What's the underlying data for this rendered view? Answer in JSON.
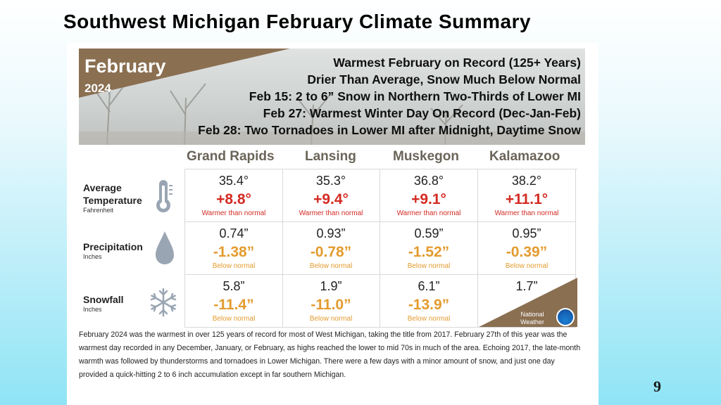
{
  "slide": {
    "title": "Southwest Michigan February Climate Summary",
    "page_number": "9"
  },
  "banner": {
    "month": "February",
    "year": "2024",
    "headlines": [
      "Warmest February on Record (125+ Years)",
      "Drier Than Average, Snow Much Below Normal",
      "Feb 15:  2 to 6” Snow in Northern Two-Thirds of Lower MI",
      "Feb 27:  Warmest Winter Day On Record (Dec-Jan-Feb)",
      "Feb 28:  Two Tornadoes in Lower MI after Midnight, Daytime Snow"
    ]
  },
  "cities": [
    "Grand Rapids",
    "Lansing",
    "Muskegon",
    "Kalamazoo"
  ],
  "rows": [
    {
      "label": "Average",
      "label2": "Temperature",
      "unit": "Fahrenheit",
      "icon": "thermometer-icon",
      "values": [
        "35.4°",
        "35.3°",
        "36.8°",
        "38.2°"
      ],
      "departures": [
        "+8.8°",
        "+9.4°",
        "+9.1°",
        "+11.1°"
      ],
      "notes": [
        "Warmer than normal",
        "Warmer than normal",
        "Warmer than normal",
        "Warmer than normal"
      ]
    },
    {
      "label": "Precipitation",
      "unit": "Inches",
      "icon": "raindrop-icon",
      "values": [
        "0.74”",
        "0.93”",
        "0.59”",
        "0.95”"
      ],
      "departures": [
        "-1.38”",
        "-0.78”",
        "-1.52”",
        "-0.39”"
      ],
      "notes": [
        "Below normal",
        "Below normal",
        "Below normal",
        "Below normal"
      ]
    },
    {
      "label": "Snowfall",
      "unit": "Inches",
      "icon": "snowflake-icon",
      "values": [
        "5.8”",
        "1.9”",
        "6.1”",
        "1.7”"
      ],
      "departures": [
        "-11.4”",
        "-11.0”",
        "-13.9”",
        ""
      ],
      "notes": [
        "Below normal",
        "Below normal",
        "Below normal",
        ""
      ]
    }
  ],
  "nws": {
    "line1": "National",
    "line2": "Weather Service"
  },
  "summary": "February 2024 was the warmest in over 125 years of record for most of West Michigan, taking the title from 2017. February 27th of this year was the warmest day recorded in any December, January, or February, as highs reached the lower to mid 70s in much of the area. Echoing 2017, the late-month warmth was followed by thunderstorms and tornadoes in Lower Michigan. There were a few days with a minor amount of snow, and just one day provided a quick-hitting 2 to 6 inch accumulation except in far southern Michigan.",
  "colors": {
    "warm": "#d32a22",
    "dry": "#e39b2e",
    "banner_brown": "#8a6f51",
    "city": "#6b6459"
  }
}
